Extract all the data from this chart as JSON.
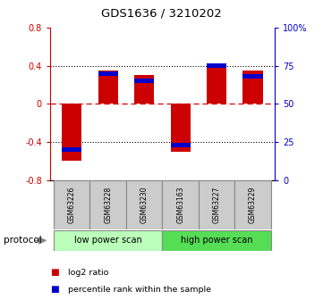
{
  "title": "GDS1636 / 3210202",
  "samples": [
    "GSM63226",
    "GSM63228",
    "GSM63230",
    "GSM63163",
    "GSM63227",
    "GSM63229"
  ],
  "log2_ratio": [
    -0.6,
    0.35,
    0.3,
    -0.5,
    0.42,
    0.35
  ],
  "percentile_rank_pct": [
    20,
    70,
    65,
    23,
    75,
    68
  ],
  "groups": [
    {
      "label": "low power scan",
      "samples": [
        0,
        1,
        2
      ],
      "color": "#bbffbb"
    },
    {
      "label": "high power scan",
      "samples": [
        3,
        4,
        5
      ],
      "color": "#55dd55"
    }
  ],
  "ylim_left": [
    -0.8,
    0.8
  ],
  "ylim_right": [
    0,
    100
  ],
  "yticks_left": [
    -0.8,
    -0.4,
    0.0,
    0.4,
    0.8
  ],
  "yticks_right": [
    0,
    25,
    50,
    75,
    100
  ],
  "ytick_labels_right": [
    "0",
    "25",
    "50",
    "75",
    "100%"
  ],
  "ytick_labels_left": [
    "-0.8",
    "-0.4",
    "0",
    "0.4",
    "0.8"
  ],
  "bar_color_red": "#cc0000",
  "bar_color_blue": "#0000cc",
  "bar_width": 0.55,
  "protocol_label": "protocol",
  "legend_items": [
    "log2 ratio",
    "percentile rank within the sample"
  ],
  "legend_colors": [
    "#cc0000",
    "#0000cc"
  ],
  "background_color": "#ffffff",
  "label_box_color": "#cccccc",
  "zero_line_color": "#dd0000",
  "grid_color": "#000000"
}
